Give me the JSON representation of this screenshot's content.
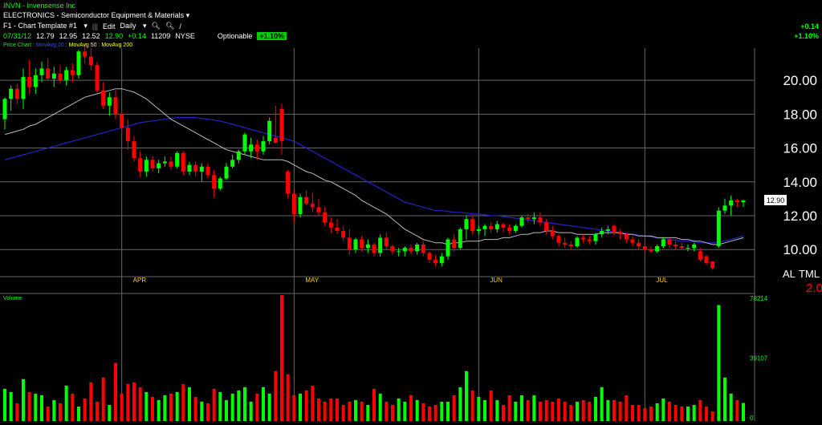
{
  "header": {
    "symbol_line": "INVN - Invensense Inc",
    "category_line": "ELECTRONICS - Semiconductor Equipment & Materials",
    "template": "F1 - Chart Template #1",
    "edit_label": "Edit",
    "period": "Daily",
    "quote": {
      "date": "07/31/12",
      "open": "12.79",
      "high": "12.95",
      "low": "12.52",
      "close": "12.90",
      "change": "+0.14",
      "volume": "11209",
      "exchange": "NYSE",
      "optionable": "Optionable",
      "pct_change": "+1.10%"
    },
    "studies": {
      "price": "Price Chart",
      "ma20": "MovAvg 20",
      "ma50": "MovAvg 50",
      "ma200": "MovAvg 200"
    },
    "right_change": "+0.14",
    "right_pct": "+1.10%"
  },
  "colors": {
    "up": "#00ff00",
    "down": "#ff0000",
    "ma20": "#bbbbbb",
    "ma50": "#2222cc",
    "grid": "#666666",
    "month_label": "#ffcc00"
  },
  "chart_data": {
    "type": "candlestick",
    "price_axis": {
      "ticks": [
        10,
        12,
        14,
        16,
        18,
        20
      ],
      "tick_labels": [
        "10.00",
        "12.00",
        "14.00",
        "16.00",
        "18.00",
        "20.00"
      ],
      "range": [
        8.4,
        21.9
      ]
    },
    "last_price_label": "12.90",
    "months": [
      {
        "label": "APR",
        "index": 19
      },
      {
        "label": "MAY",
        "index": 47
      },
      {
        "label": "JUN",
        "index": 77
      },
      {
        "label": "JUL",
        "index": 104
      }
    ],
    "right_axis_text": [
      "AL",
      "TML",
      "2.0"
    ],
    "volume_axis": {
      "label": "Volume",
      "ticks": [
        "78214",
        "39107",
        "0"
      ],
      "max": 78214
    },
    "candles": [
      [
        17.7,
        19.0,
        17.1,
        18.9
      ],
      [
        18.9,
        19.7,
        18.2,
        19.5
      ],
      [
        19.5,
        19.8,
        18.6,
        18.9
      ],
      [
        18.9,
        20.7,
        18.3,
        20.2
      ],
      [
        20.2,
        21.2,
        19.2,
        19.6
      ],
      [
        19.6,
        20.7,
        19.2,
        20.3
      ],
      [
        20.3,
        21.1,
        19.9,
        20.7
      ],
      [
        20.7,
        21.3,
        20.0,
        20.1
      ],
      [
        20.1,
        20.8,
        19.6,
        20.4
      ],
      [
        20.4,
        20.9,
        19.8,
        20.0
      ],
      [
        20.0,
        20.8,
        19.7,
        20.6
      ],
      [
        20.6,
        21.0,
        19.9,
        20.3
      ],
      [
        20.3,
        21.8,
        20.1,
        21.7
      ],
      [
        21.7,
        22.2,
        21.0,
        21.4
      ],
      [
        21.4,
        21.9,
        20.6,
        20.9
      ],
      [
        20.9,
        21.1,
        19.3,
        19.4
      ],
      [
        19.4,
        19.9,
        18.3,
        18.5
      ],
      [
        18.5,
        19.3,
        17.9,
        19.0
      ],
      [
        19.0,
        19.4,
        17.7,
        18.0
      ],
      [
        18.0,
        18.3,
        16.8,
        17.2
      ],
      [
        17.2,
        17.7,
        15.9,
        16.4
      ],
      [
        16.4,
        16.7,
        15.2,
        15.4
      ],
      [
        15.4,
        15.8,
        14.3,
        14.6
      ],
      [
        14.6,
        15.5,
        14.3,
        15.3
      ],
      [
        15.3,
        15.5,
        14.6,
        14.8
      ],
      [
        14.8,
        15.3,
        14.5,
        15.1
      ],
      [
        15.1,
        15.5,
        14.9,
        15.2
      ],
      [
        15.2,
        15.5,
        14.7,
        14.9
      ],
      [
        14.9,
        15.8,
        14.8,
        15.7
      ],
      [
        15.7,
        15.8,
        14.4,
        14.6
      ],
      [
        14.6,
        15.2,
        14.4,
        15.0
      ],
      [
        15.0,
        15.2,
        14.3,
        14.6
      ],
      [
        14.6,
        15.1,
        14.0,
        14.9
      ],
      [
        14.9,
        15.1,
        14.2,
        14.4
      ],
      [
        14.4,
        14.7,
        13.1,
        13.6
      ],
      [
        13.6,
        14.3,
        13.5,
        14.2
      ],
      [
        14.2,
        15.1,
        14.1,
        14.9
      ],
      [
        14.9,
        15.6,
        14.8,
        15.3
      ],
      [
        15.3,
        15.9,
        15.1,
        15.8
      ],
      [
        15.8,
        16.9,
        15.6,
        16.8
      ],
      [
        15.8,
        16.6,
        15.4,
        16.2
      ],
      [
        16.2,
        16.5,
        15.3,
        15.8
      ],
      [
        15.8,
        16.7,
        15.6,
        16.4
      ],
      [
        16.4,
        17.8,
        16.2,
        17.6
      ],
      [
        16.6,
        18.5,
        16.4,
        16.3
      ],
      [
        18.3,
        18.6,
        15.6,
        16.4
      ],
      [
        14.6,
        14.7,
        13.0,
        13.3
      ],
      [
        13.3,
        13.5,
        11.6,
        12.1
      ],
      [
        12.1,
        13.3,
        11.9,
        13.1
      ],
      [
        13.1,
        13.5,
        12.6,
        12.7
      ],
      [
        12.7,
        13.4,
        12.2,
        12.5
      ],
      [
        12.5,
        13.0,
        12.0,
        12.2
      ],
      [
        12.2,
        12.5,
        11.4,
        11.6
      ],
      [
        11.6,
        11.9,
        11.0,
        11.3
      ],
      [
        11.3,
        11.8,
        10.9,
        11.1
      ],
      [
        11.1,
        11.4,
        10.5,
        10.7
      ],
      [
        10.7,
        11.2,
        9.7,
        10.0
      ],
      [
        10.0,
        10.7,
        9.8,
        10.6
      ],
      [
        10.6,
        10.8,
        9.9,
        10.1
      ],
      [
        10.1,
        10.6,
        9.8,
        10.3
      ],
      [
        10.3,
        10.4,
        9.6,
        9.8
      ],
      [
        9.8,
        10.9,
        9.6,
        10.7
      ],
      [
        10.7,
        11.0,
        10.0,
        10.2
      ],
      [
        10.2,
        10.3,
        9.7,
        9.9
      ],
      [
        9.9,
        10.1,
        9.6,
        9.9
      ],
      [
        9.9,
        10.2,
        9.6,
        10.1
      ],
      [
        10.1,
        10.3,
        9.7,
        9.9
      ],
      [
        9.9,
        10.4,
        9.7,
        10.3
      ],
      [
        10.3,
        10.5,
        9.6,
        9.8
      ],
      [
        9.8,
        9.9,
        9.2,
        9.4
      ],
      [
        9.4,
        9.7,
        9.0,
        9.2
      ],
      [
        9.2,
        9.8,
        9.0,
        9.6
      ],
      [
        9.6,
        10.7,
        9.4,
        10.6
      ],
      [
        10.6,
        10.9,
        9.9,
        10.1
      ],
      [
        10.1,
        11.3,
        10.0,
        11.2
      ],
      [
        11.2,
        12.0,
        10.6,
        11.8
      ],
      [
        11.8,
        12.0,
        10.9,
        11.1
      ],
      [
        11.1,
        11.4,
        10.9,
        11.2
      ],
      [
        11.2,
        11.5,
        10.8,
        11.4
      ],
      [
        11.4,
        11.6,
        11.0,
        11.2
      ],
      [
        11.2,
        11.7,
        11.0,
        11.5
      ],
      [
        11.5,
        11.6,
        11.0,
        11.3
      ],
      [
        11.3,
        11.5,
        10.9,
        11.1
      ],
      [
        11.1,
        11.5,
        11.0,
        11.4
      ],
      [
        11.4,
        12.0,
        11.3,
        11.9
      ],
      [
        11.9,
        12.1,
        11.6,
        11.8
      ],
      [
        11.8,
        12.2,
        11.5,
        11.9
      ],
      [
        11.9,
        12.2,
        11.4,
        11.6
      ],
      [
        11.6,
        11.8,
        10.9,
        11.1
      ],
      [
        11.1,
        11.4,
        10.6,
        10.8
      ],
      [
        10.8,
        10.9,
        10.2,
        10.4
      ],
      [
        10.4,
        10.7,
        10.1,
        10.3
      ],
      [
        10.3,
        10.5,
        10.0,
        10.2
      ],
      [
        10.2,
        10.8,
        10.1,
        10.7
      ],
      [
        10.7,
        10.9,
        10.4,
        10.6
      ],
      [
        10.6,
        10.8,
        10.3,
        10.5
      ],
      [
        10.5,
        11.0,
        10.3,
        10.9
      ],
      [
        10.9,
        11.3,
        10.7,
        11.1
      ],
      [
        11.1,
        11.4,
        10.9,
        11.2
      ],
      [
        11.4,
        11.5,
        10.8,
        11.0
      ],
      [
        11.0,
        11.2,
        10.6,
        10.9
      ],
      [
        10.9,
        11.0,
        10.4,
        10.6
      ],
      [
        10.6,
        10.8,
        10.2,
        10.4
      ],
      [
        10.4,
        10.6,
        10.0,
        10.2
      ],
      [
        10.2,
        10.4,
        9.8,
        10.0
      ],
      [
        10.0,
        10.2,
        9.8,
        9.9
      ],
      [
        9.9,
        10.3,
        9.8,
        10.2
      ],
      [
        10.2,
        10.7,
        10.1,
        10.6
      ],
      [
        10.6,
        10.7,
        10.1,
        10.3
      ],
      [
        10.3,
        10.5,
        10.0,
        10.2
      ],
      [
        10.2,
        10.4,
        10.0,
        10.1
      ],
      [
        10.1,
        10.3,
        9.9,
        10.1
      ],
      [
        10.1,
        10.4,
        9.9,
        10.3
      ],
      [
        9.9,
        10.1,
        9.3,
        9.4
      ],
      [
        9.6,
        9.7,
        9.1,
        9.2
      ],
      [
        9.3,
        9.3,
        8.8,
        8.9
      ],
      [
        10.2,
        12.5,
        10.1,
        12.3
      ],
      [
        12.3,
        13.0,
        12.1,
        12.6
      ],
      [
        12.6,
        13.2,
        12.0,
        12.9
      ],
      [
        12.9,
        13.0,
        12.5,
        12.8
      ],
      [
        12.79,
        12.95,
        12.52,
        12.9
      ]
    ],
    "volume_up_candle_colors": "by candle direction",
    "volumes": [
      20000,
      18000,
      11000,
      26000,
      18000,
      17000,
      16000,
      9000,
      13000,
      11000,
      22000,
      17000,
      9000,
      14000,
      24000,
      12000,
      27000,
      10000,
      36000,
      17000,
      23000,
      24000,
      21000,
      18000,
      15000,
      13000,
      16000,
      17000,
      18000,
      23000,
      21000,
      15000,
      12000,
      11000,
      20000,
      18000,
      13000,
      17000,
      19000,
      21000,
      12000,
      17000,
      21000,
      17000,
      31000,
      78214,
      29000,
      16000,
      17000,
      19000,
      22000,
      14000,
      12000,
      14000,
      14000,
      10000,
      12000,
      13000,
      12000,
      10000,
      20000,
      17000,
      12000,
      10000,
      14000,
      12000,
      16000,
      13000,
      11000,
      9000,
      10000,
      12000,
      12000,
      16000,
      21000,
      31000,
      19000,
      15000,
      13000,
      19000,
      13000,
      10000,
      16000,
      12000,
      16000,
      13000,
      16000,
      12000,
      13000,
      12000,
      14000,
      12000,
      10000,
      12000,
      13000,
      12000,
      15000,
      21000,
      13000,
      13000,
      12000,
      16000,
      10000,
      10000,
      8000,
      9000,
      11000,
      14000,
      12000,
      10000,
      9000,
      9000,
      10000,
      13000,
      9000,
      6000,
      72000,
      27000,
      17000,
      13000,
      11209
    ],
    "ma20": [
      16.8,
      16.9,
      17.0,
      17.1,
      17.3,
      17.4,
      17.6,
      17.8,
      18.0,
      18.2,
      18.4,
      18.6,
      18.8,
      19.0,
      19.1,
      19.2,
      19.3,
      19.4,
      19.5,
      19.5,
      19.4,
      19.3,
      19.1,
      18.9,
      18.6,
      18.3,
      18.0,
      17.7,
      17.5,
      17.3,
      17.1,
      16.9,
      16.7,
      16.5,
      16.3,
      16.1,
      15.9,
      15.8,
      15.7,
      15.6,
      15.5,
      15.4,
      15.3,
      15.3,
      15.3,
      15.3,
      15.2,
      15.0,
      14.8,
      14.6,
      14.5,
      14.3,
      14.1,
      14.0,
      13.8,
      13.6,
      13.4,
      13.2,
      12.9,
      12.7,
      12.5,
      12.3,
      12.1,
      11.8,
      11.5,
      11.2,
      11.0,
      10.8,
      10.6,
      10.5,
      10.4,
      10.4,
      10.3,
      10.4,
      10.4,
      10.5,
      10.5,
      10.5,
      10.6,
      10.6,
      10.6,
      10.7,
      10.7,
      10.8,
      10.9,
      10.9,
      11.0,
      11.0,
      11.1,
      11.1,
      11.0,
      11.0,
      11.0,
      10.9,
      10.9,
      10.9,
      10.9,
      11.0,
      11.0,
      11.0,
      11.0,
      10.9,
      10.9,
      10.8,
      10.8,
      10.8,
      10.7,
      10.7,
      10.7,
      10.7,
      10.6,
      10.6,
      10.5,
      10.5,
      10.4,
      10.3,
      10.3,
      10.4,
      10.5,
      10.6,
      10.7
    ],
    "ma50": [
      15.3,
      15.4,
      15.5,
      15.6,
      15.7,
      15.8,
      15.9,
      16.0,
      16.1,
      16.2,
      16.3,
      16.4,
      16.5,
      16.6,
      16.7,
      16.8,
      16.9,
      17.0,
      17.1,
      17.2,
      17.3,
      17.4,
      17.5,
      17.55,
      17.6,
      17.65,
      17.7,
      17.75,
      17.8,
      17.8,
      17.8,
      17.8,
      17.75,
      17.7,
      17.65,
      17.6,
      17.5,
      17.4,
      17.3,
      17.2,
      17.1,
      17.0,
      16.9,
      16.8,
      16.7,
      16.6,
      16.5,
      16.4,
      16.2,
      16.0,
      15.8,
      15.6,
      15.4,
      15.2,
      15.0,
      14.8,
      14.6,
      14.4,
      14.2,
      14.0,
      13.8,
      13.6,
      13.4,
      13.2,
      13.0,
      12.8,
      12.7,
      12.6,
      12.5,
      12.4,
      12.3,
      12.3,
      12.25,
      12.2,
      12.2,
      12.15,
      12.1,
      12.1,
      12.05,
      12.0,
      12.0,
      11.95,
      11.9,
      11.85,
      11.8,
      11.75,
      11.7,
      11.65,
      11.6,
      11.55,
      11.5,
      11.45,
      11.4,
      11.35,
      11.3,
      11.25,
      11.2,
      11.15,
      11.1,
      11.05,
      11.0,
      10.95,
      10.9,
      10.85,
      10.8,
      10.75,
      10.7,
      10.65,
      10.6,
      10.55,
      10.5,
      10.5,
      10.45,
      10.4,
      10.4,
      10.4,
      10.45,
      10.5,
      10.6,
      10.7,
      10.8
    ]
  }
}
